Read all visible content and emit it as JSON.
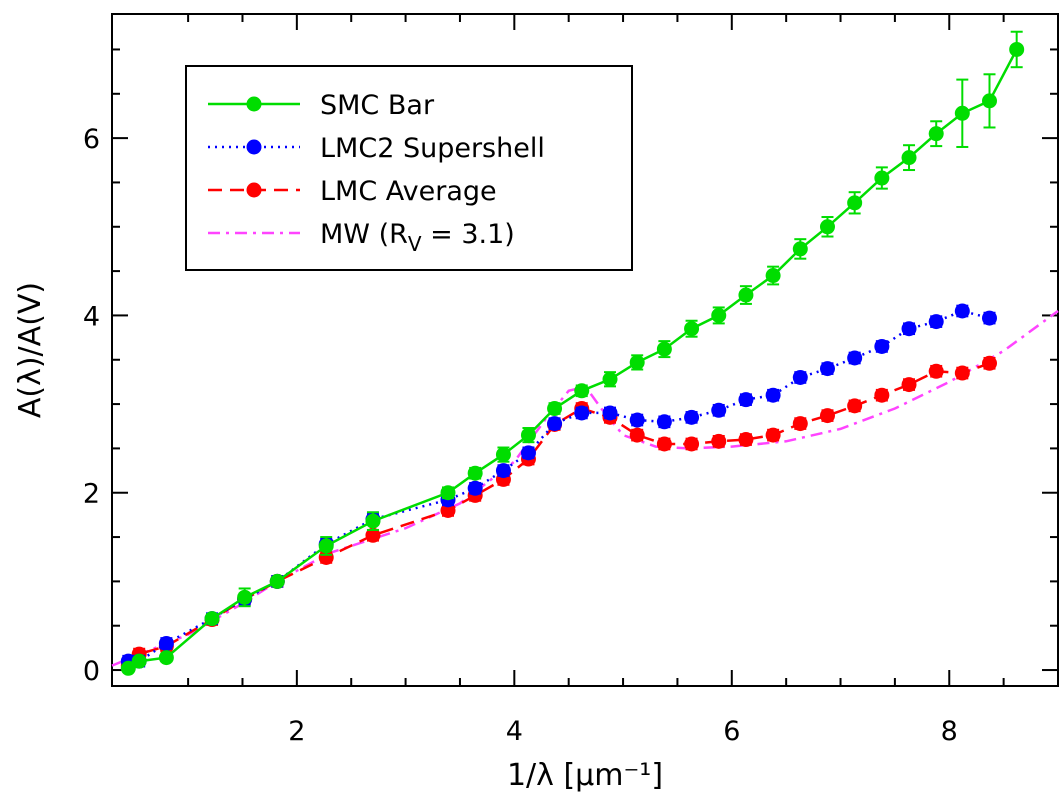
{
  "chart_data": {
    "type": "line",
    "xlabel": "1/λ [μm⁻¹]",
    "ylabel": "A(λ)/A(V)",
    "xlim": [
      0.3,
      9.0
    ],
    "ylim": [
      -0.18,
      7.4
    ],
    "x_ticks": [
      2,
      4,
      6,
      8
    ],
    "y_ticks": [
      0,
      2,
      4,
      6
    ],
    "x_tick_labels": [
      "2",
      "4",
      "6",
      "8"
    ],
    "y_tick_labels": [
      "0",
      "2",
      "4",
      "6"
    ],
    "grid": false,
    "legend_position": "top-left",
    "legend": [
      {
        "name": "SMC Bar",
        "color": "#00dd00",
        "style": "solid"
      },
      {
        "name": "LMC2 Supershell",
        "color": "#0000ff",
        "style": "dotted"
      },
      {
        "name": "LMC Average",
        "color": "#ff0000",
        "style": "dashed"
      },
      {
        "name": "MW (R",
        "sub": "V",
        "name_suffix": " = 3.1)",
        "color": "#ff44ff",
        "style": "dashdot"
      }
    ],
    "series": [
      {
        "name": "SMC Bar",
        "color": "#00dd00",
        "line": "solid",
        "x": [
          0.45,
          0.55,
          0.8,
          1.22,
          1.52,
          1.82,
          2.27,
          2.7,
          3.39,
          3.64,
          3.9,
          4.13,
          4.37,
          4.62,
          4.88,
          5.13,
          5.38,
          5.63,
          5.88,
          6.13,
          6.38,
          6.63,
          6.88,
          7.13,
          7.38,
          7.63,
          7.88,
          8.12,
          8.37,
          8.62
        ],
        "y": [
          0.02,
          0.1,
          0.14,
          0.58,
          0.82,
          1.0,
          1.4,
          1.68,
          2.0,
          2.22,
          2.43,
          2.65,
          2.95,
          3.15,
          3.28,
          3.47,
          3.62,
          3.85,
          4.0,
          4.23,
          4.45,
          4.75,
          5.0,
          5.27,
          5.55,
          5.78,
          6.05,
          6.28,
          6.42,
          7.0
        ],
        "err": [
          0.03,
          0.03,
          0.04,
          0.05,
          0.1,
          0.03,
          0.1,
          0.1,
          0.06,
          0.06,
          0.08,
          0.08,
          0.06,
          0.06,
          0.08,
          0.08,
          0.09,
          0.09,
          0.09,
          0.1,
          0.1,
          0.11,
          0.11,
          0.12,
          0.12,
          0.14,
          0.14,
          0.38,
          0.3,
          0.2
        ]
      },
      {
        "name": "LMC2 Supershell",
        "color": "#0000ff",
        "line": "dotted",
        "x": [
          0.45,
          0.55,
          0.8,
          1.22,
          1.52,
          1.82,
          2.27,
          2.7,
          3.39,
          3.64,
          3.9,
          4.13,
          4.37,
          4.62,
          4.88,
          5.13,
          5.38,
          5.63,
          5.88,
          6.13,
          6.38,
          6.63,
          6.88,
          7.13,
          7.38,
          7.63,
          7.88,
          8.12,
          8.37
        ],
        "y": [
          0.1,
          0.1,
          0.3,
          0.58,
          0.8,
          1.0,
          1.42,
          1.7,
          1.92,
          2.05,
          2.25,
          2.45,
          2.78,
          2.9,
          2.9,
          2.82,
          2.8,
          2.85,
          2.93,
          3.05,
          3.1,
          3.3,
          3.4,
          3.52,
          3.65,
          3.85,
          3.93,
          4.05,
          3.97
        ]
      },
      {
        "name": "LMC Average",
        "color": "#ff0000",
        "line": "dashed",
        "x": [
          0.45,
          0.55,
          0.8,
          1.22,
          1.52,
          1.82,
          2.27,
          2.7,
          3.39,
          3.64,
          3.9,
          4.13,
          4.37,
          4.62,
          4.88,
          5.13,
          5.38,
          5.63,
          5.88,
          6.13,
          6.38,
          6.63,
          6.88,
          7.13,
          7.38,
          7.63,
          7.88,
          8.12,
          8.37
        ],
        "y": [
          0.05,
          0.18,
          0.27,
          0.57,
          0.8,
          1.0,
          1.27,
          1.52,
          1.8,
          1.97,
          2.15,
          2.38,
          2.77,
          2.95,
          2.85,
          2.65,
          2.55,
          2.55,
          2.58,
          2.6,
          2.65,
          2.78,
          2.87,
          2.98,
          3.1,
          3.22,
          3.37,
          3.35,
          3.46
        ]
      },
      {
        "name": "MW (Rv = 3.1)",
        "color": "#ff44ff",
        "line": "dashdot",
        "x": [
          0.3,
          1.0,
          1.5,
          1.82,
          2.3,
          3.0,
          3.5,
          4.0,
          4.3,
          4.5,
          4.6,
          4.7,
          4.8,
          5.0,
          5.3,
          5.6,
          6.0,
          6.5,
          7.0,
          7.5,
          8.0,
          8.5,
          9.0
        ],
        "y": [
          0.05,
          0.4,
          0.75,
          1.0,
          1.32,
          1.6,
          1.88,
          2.35,
          2.85,
          3.15,
          3.18,
          3.12,
          2.95,
          2.65,
          2.52,
          2.5,
          2.52,
          2.58,
          2.72,
          2.95,
          3.25,
          3.6,
          4.05
        ]
      }
    ]
  }
}
